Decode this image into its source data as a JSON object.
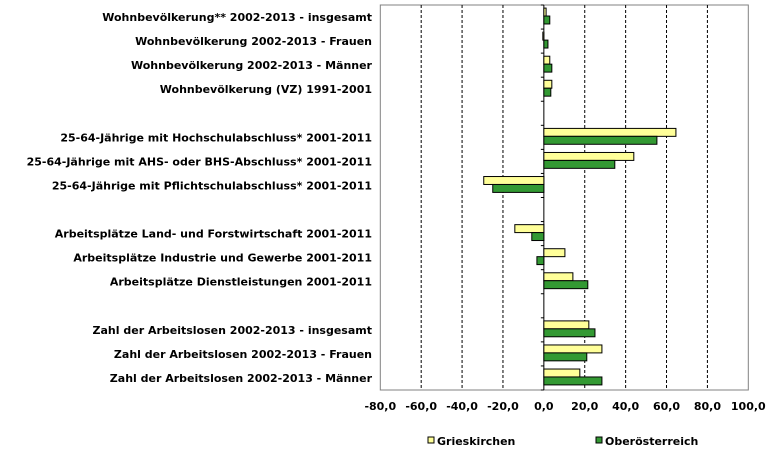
{
  "chart_data": {
    "type": "bar",
    "orientation": "horizontal",
    "title": "",
    "xlabel": "",
    "ylabel": "",
    "xlim": [
      -80,
      100
    ],
    "xticks": [
      "-80,0",
      "-60,0",
      "-40,0",
      "-20,0",
      "0,0",
      "20,0",
      "40,0",
      "60,0",
      "80,0",
      "100,0"
    ],
    "grid": "vertical dashed",
    "legend_position": "bottom",
    "categories": [
      "Wohnbevölkerung** 2002-2013 - insgesamt",
      "Wohnbevölkerung 2002-2013 - Frauen",
      "Wohnbevölkerung 2002-2013 - Männer",
      "Wohnbevölkerung (VZ) 1991-2001",
      "",
      "25-64-Jährige mit Hochschulabschluss* 2001-2011",
      "25-64-Jährige mit AHS- oder BHS-Abschluss* 2001-2011",
      "25-64-Jährige mit Pflichtschulabschluss* 2001-2011",
      "",
      "Arbeitsplätze Land- und Forstwirtschaft 2001-2011",
      "Arbeitsplätze Industrie und Gewerbe 2001-2011",
      "Arbeitsplätze Dienstleistungen 2001-2011",
      "",
      "Zahl der Arbeitslosen 2002-2013 - insgesamt",
      "Zahl der Arbeitslosen 2002-2013 - Frauen",
      "Zahl der Arbeitslosen 2002-2013 - Männer"
    ],
    "series": [
      {
        "name": "Grieskirchen",
        "color": "#FFFF99",
        "values": [
          1.1,
          -0.5,
          2.9,
          3.9,
          null,
          64.6,
          44.0,
          -29.4,
          null,
          -14.2,
          10.3,
          14.2,
          null,
          22.0,
          28.4,
          17.6
        ]
      },
      {
        "name": "Oberösterreich",
        "color": "#339933",
        "values": [
          2.9,
          2.0,
          3.9,
          3.4,
          null,
          55.3,
          34.7,
          -25.0,
          null,
          -5.9,
          -3.4,
          21.5,
          null,
          25.0,
          21.0,
          28.4
        ]
      }
    ]
  }
}
